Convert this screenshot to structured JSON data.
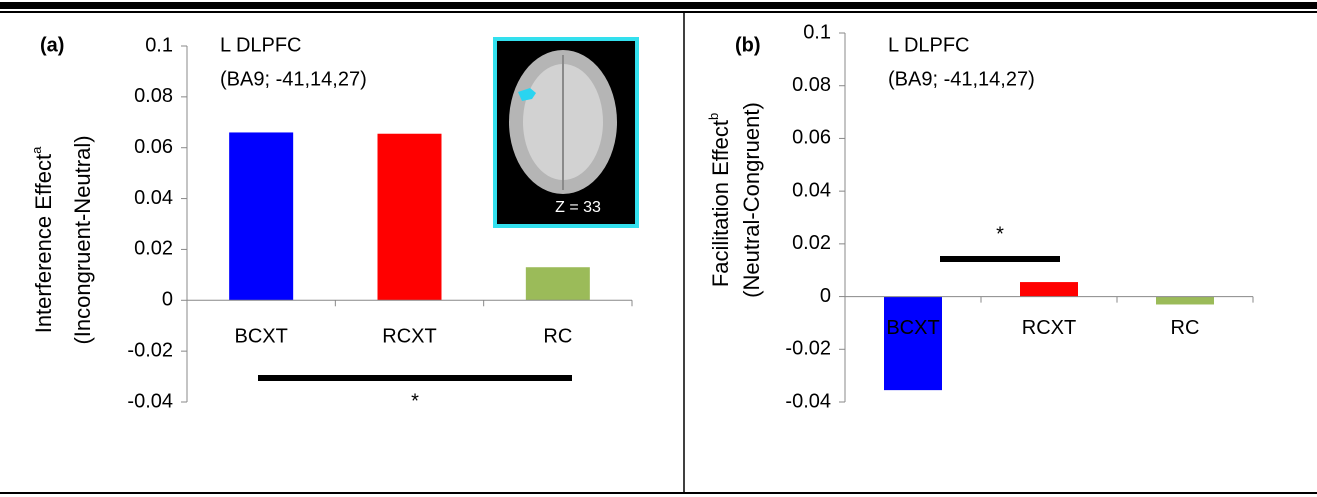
{
  "chart_data": [
    {
      "type": "bar",
      "panel_label": "(a)",
      "title": [
        "L DLPFC",
        "(BA9; -41,14,27)"
      ],
      "y_label": [
        "Interference Effect",
        "(Incongruent-Neutral)"
      ],
      "y_label_superscript": "a",
      "categories": [
        "BCXT",
        "RCXT",
        "RC"
      ],
      "values": [
        0.066,
        0.0655,
        0.013
      ],
      "colors": [
        "#0000ff",
        "#ff0000",
        "#9bbb59"
      ],
      "ylim": [
        -0.04,
        0.1
      ],
      "yticks": [
        -0.04,
        -0.02,
        0,
        0.02,
        0.04,
        0.06,
        0.08,
        0.1
      ],
      "annotation": "*",
      "inset_label": "Z = 33"
    },
    {
      "type": "bar",
      "panel_label": "(b)",
      "title": [
        "L DLPFC",
        "(BA9; -41,14,27)"
      ],
      "y_label": [
        "Facilitation Effect",
        "(Neutral-Congruent)"
      ],
      "y_label_superscript": "b",
      "categories": [
        "BCXT",
        "RCXT",
        "RC"
      ],
      "values": [
        -0.0355,
        0.0055,
        -0.003
      ],
      "colors": [
        "#0000ff",
        "#ff0000",
        "#9bbb59"
      ],
      "ylim": [
        -0.04,
        0.1
      ],
      "yticks": [
        -0.04,
        -0.02,
        0,
        0.02,
        0.04,
        0.06,
        0.08,
        0.1
      ],
      "annotation": "*"
    }
  ]
}
